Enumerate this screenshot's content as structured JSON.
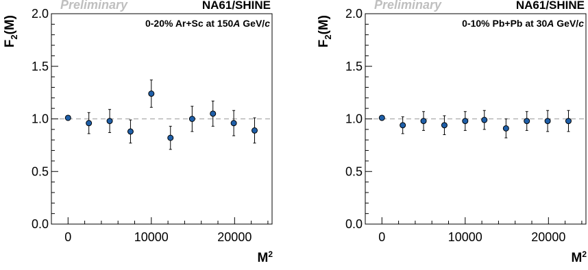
{
  "chart_data": [
    {
      "type": "scatter",
      "watermark": "Preliminary",
      "collaboration": "NA61/SHINE",
      "system_label": [
        "0-20% Ar+Sc at 150",
        "A",
        " GeV/",
        "c"
      ],
      "ylabel": [
        "F",
        "2",
        "(M)"
      ],
      "xlabel": [
        "M",
        "2"
      ],
      "xlim": [
        -2000,
        24500
      ],
      "ylim": [
        0.0,
        2.0
      ],
      "xticks": [
        0,
        10000,
        20000
      ],
      "xtick_labels": [
        "0",
        "10000",
        "20000"
      ],
      "yticks": [
        0.0,
        0.5,
        1.0,
        1.5,
        2.0
      ],
      "ytick_labels": [
        "0.0",
        "0.5",
        "1.0",
        "1.5",
        "2.0"
      ],
      "reference_line": 1.0,
      "marker_color": "#1f5fa8",
      "points": [
        {
          "x": 0,
          "y": 1.01,
          "err": 0.0
        },
        {
          "x": 2500,
          "y": 0.96,
          "err": 0.1
        },
        {
          "x": 5000,
          "y": 0.98,
          "err": 0.11
        },
        {
          "x": 7500,
          "y": 0.88,
          "err": 0.11
        },
        {
          "x": 10000,
          "y": 1.24,
          "err": 0.13
        },
        {
          "x": 12300,
          "y": 0.82,
          "err": 0.11
        },
        {
          "x": 14900,
          "y": 1.0,
          "err": 0.12
        },
        {
          "x": 17400,
          "y": 1.05,
          "err": 0.12
        },
        {
          "x": 19900,
          "y": 0.96,
          "err": 0.12
        },
        {
          "x": 22400,
          "y": 0.89,
          "err": 0.12
        }
      ]
    },
    {
      "type": "scatter",
      "watermark": "Preliminary",
      "collaboration": "NA61/SHINE",
      "system_label": [
        "0-10% Pb+Pb at 30",
        "A",
        " GeV/",
        "c"
      ],
      "ylabel": [
        "F",
        "2",
        "(M)"
      ],
      "xlabel": [
        "M",
        "2"
      ],
      "xlim": [
        -2000,
        24500
      ],
      "ylim": [
        0.0,
        2.0
      ],
      "xticks": [
        0,
        10000,
        20000
      ],
      "xtick_labels": [
        "0",
        "10000",
        "20000"
      ],
      "yticks": [
        0.0,
        0.5,
        1.0,
        1.5,
        2.0
      ],
      "ytick_labels": [
        "0.0",
        "0.5",
        "1.0",
        "1.5",
        "2.0"
      ],
      "reference_line": 1.0,
      "marker_color": "#1f5fa8",
      "points": [
        {
          "x": 0,
          "y": 1.01,
          "err": 0.0
        },
        {
          "x": 2500,
          "y": 0.94,
          "err": 0.08
        },
        {
          "x": 5000,
          "y": 0.98,
          "err": 0.09
        },
        {
          "x": 7500,
          "y": 0.94,
          "err": 0.09
        },
        {
          "x": 10000,
          "y": 0.98,
          "err": 0.09
        },
        {
          "x": 12300,
          "y": 0.99,
          "err": 0.09
        },
        {
          "x": 14900,
          "y": 0.91,
          "err": 0.09
        },
        {
          "x": 17400,
          "y": 0.98,
          "err": 0.09
        },
        {
          "x": 19900,
          "y": 0.98,
          "err": 0.1
        },
        {
          "x": 22400,
          "y": 0.98,
          "err": 0.1
        }
      ]
    }
  ]
}
